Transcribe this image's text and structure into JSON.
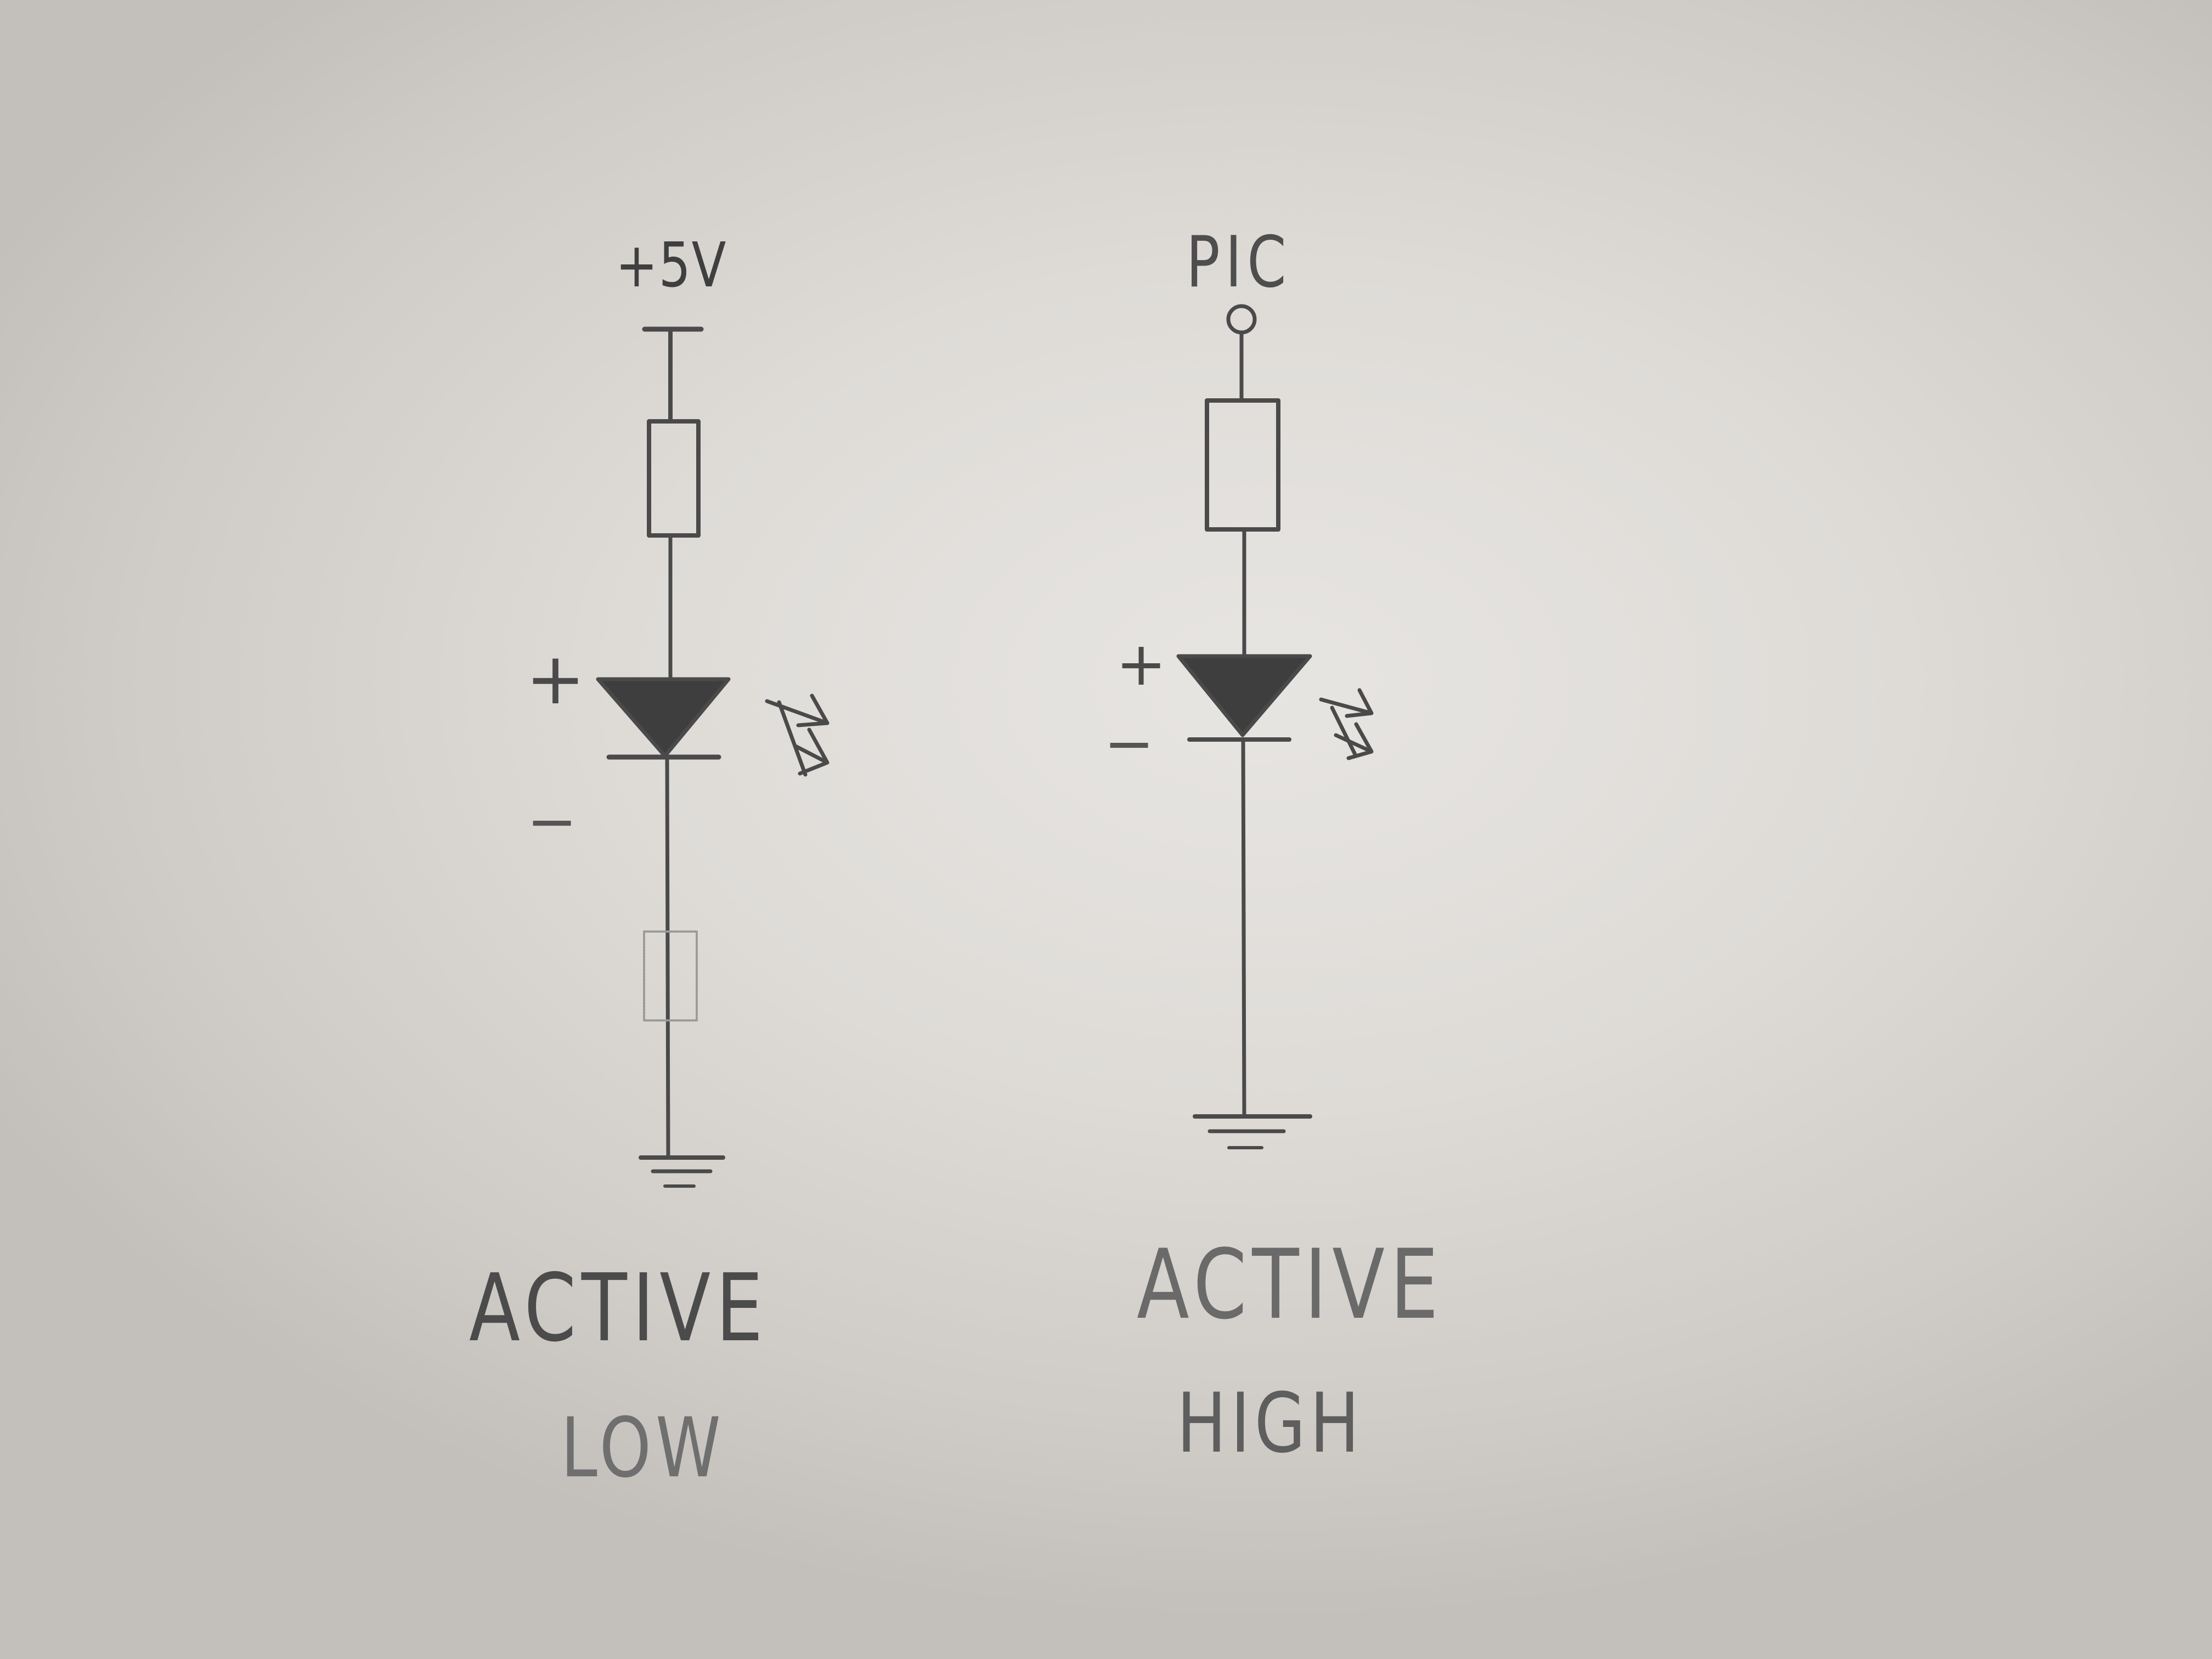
{
  "circuits": [
    {
      "supply_label": "+5V",
      "anode_sign": "+",
      "cathode_sign": "−",
      "caption_line1": "ACTIVE",
      "caption_line2": "LOW"
    },
    {
      "supply_label": "PIC",
      "anode_sign": "+",
      "cathode_sign": "−",
      "caption_line1": "ACTIVE",
      "caption_line2": "HIGH"
    }
  ],
  "colors": {
    "paper": "#e3e1de",
    "pencil": "#4a4a4a",
    "diode_fill": "#3e3e3e"
  }
}
